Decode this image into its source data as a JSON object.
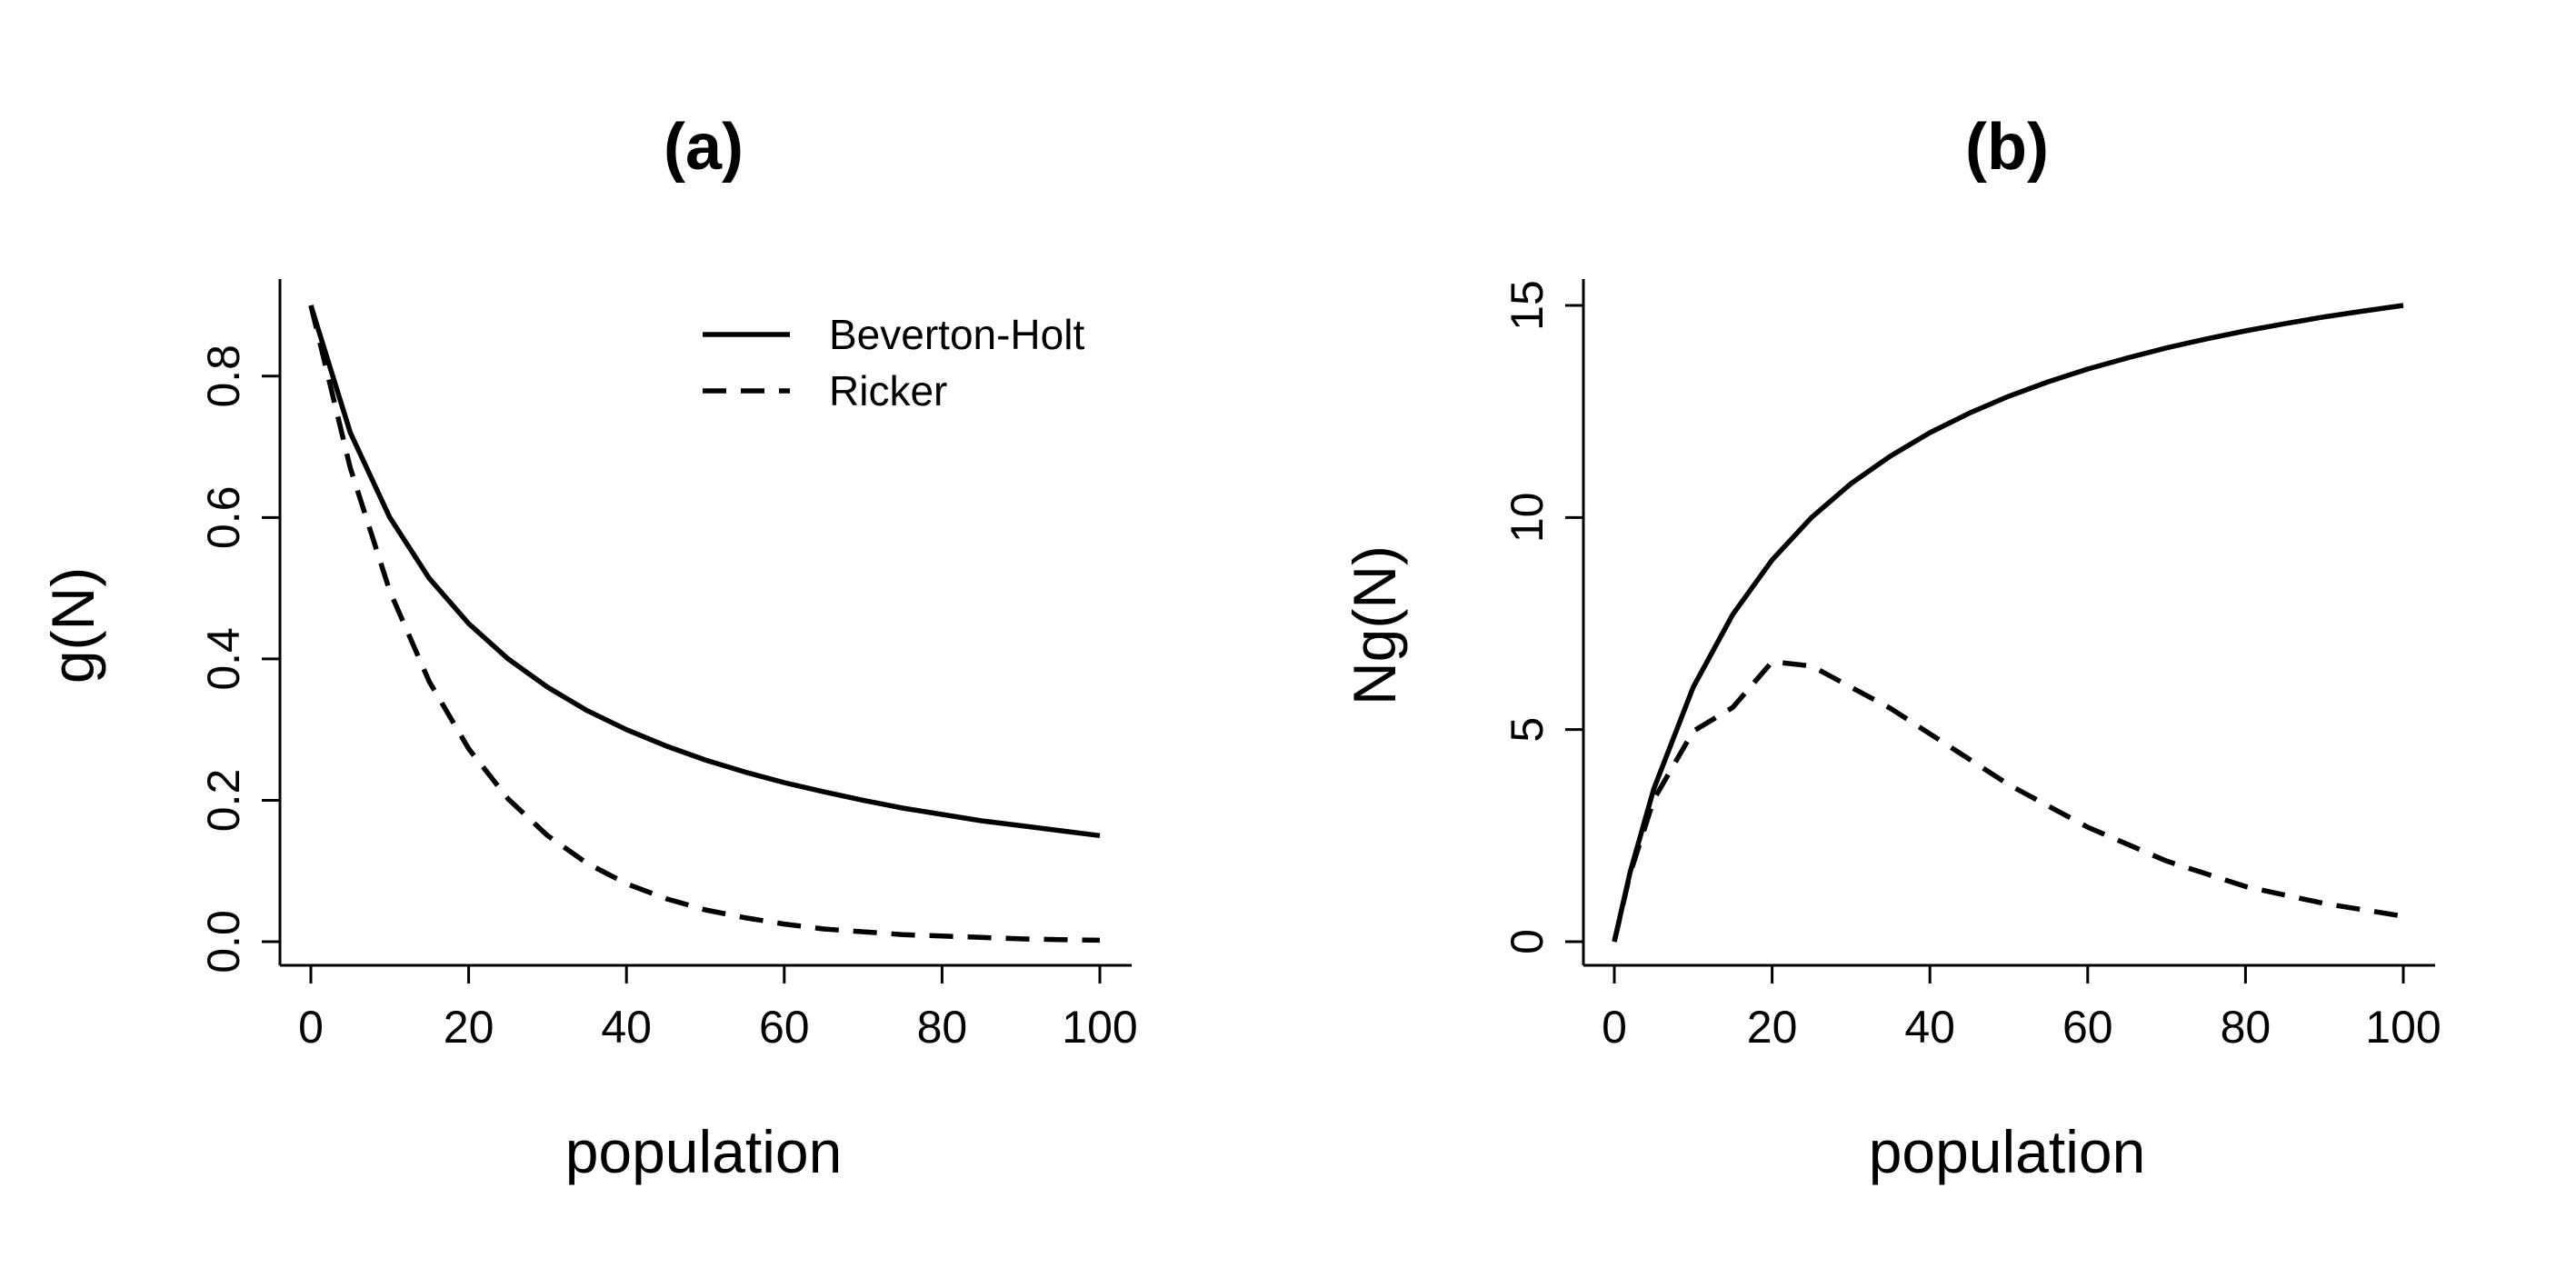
{
  "chart_data": [
    {
      "type": "line",
      "title": "(a)",
      "xlabel": "population",
      "ylabel": "g(N)",
      "xlim": [
        0,
        100
      ],
      "ylim": [
        0,
        0.9
      ],
      "xticks": [
        0,
        20,
        40,
        60,
        80,
        100
      ],
      "xtick_labels": [
        "0",
        "20",
        "40",
        "60",
        "80",
        "100"
      ],
      "yticks": [
        0,
        0.2,
        0.4,
        0.6,
        0.8
      ],
      "ytick_labels": [
        "0.0",
        "0.2",
        "0.4",
        "0.6",
        "0.8"
      ],
      "legend_position": "top-right",
      "grid": false,
      "x": [
        0,
        5,
        10,
        15,
        20,
        25,
        30,
        35,
        40,
        45,
        50,
        55,
        60,
        65,
        70,
        75,
        80,
        85,
        90,
        95,
        100
      ],
      "series": [
        {
          "name": "Beverton-Holt",
          "style": "solid",
          "values": [
            0.9,
            0.72,
            0.6,
            0.514,
            0.45,
            0.4,
            0.36,
            0.327,
            0.3,
            0.277,
            0.257,
            0.24,
            0.225,
            0.212,
            0.2,
            0.189,
            0.18,
            0.171,
            0.164,
            0.157,
            0.15
          ]
        },
        {
          "name": "Ricker",
          "style": "dashed",
          "values": [
            0.9,
            0.67,
            0.496,
            0.368,
            0.273,
            0.202,
            0.15,
            0.111,
            0.082,
            0.061,
            0.045,
            0.034,
            0.025,
            0.018,
            0.014,
            0.01,
            0.008,
            0.006,
            0.004,
            0.003,
            0.002
          ]
        }
      ]
    },
    {
      "type": "line",
      "title": "(b)",
      "xlabel": "population",
      "ylabel": "Ng(N)",
      "xlim": [
        0,
        100
      ],
      "ylim": [
        0,
        15
      ],
      "xticks": [
        0,
        20,
        40,
        60,
        80,
        100
      ],
      "xtick_labels": [
        "0",
        "20",
        "40",
        "60",
        "80",
        "100"
      ],
      "yticks": [
        0,
        5,
        10,
        15
      ],
      "ytick_labels": [
        "0",
        "5",
        "10",
        "15"
      ],
      "grid": false,
      "x": [
        0,
        2,
        5,
        10,
        15,
        20,
        25,
        30,
        35,
        40,
        45,
        50,
        55,
        60,
        65,
        70,
        75,
        80,
        85,
        90,
        95,
        100
      ],
      "series": [
        {
          "style": "solid",
          "values": [
            0,
            1.64,
            3.6,
            6.0,
            7.71,
            9.0,
            10.0,
            10.8,
            11.45,
            12.0,
            12.46,
            12.86,
            13.2,
            13.5,
            13.76,
            14.0,
            14.21,
            14.4,
            14.57,
            14.73,
            14.87,
            15.0
          ]
        },
        {
          "style": "dashed",
          "values": [
            0,
            1.6,
            3.35,
            4.96,
            5.52,
            6.6,
            6.5,
            6.0,
            5.5,
            4.9,
            4.3,
            3.7,
            3.2,
            2.7,
            2.3,
            1.9,
            1.6,
            1.3,
            1.1,
            0.9,
            0.75,
            0.6
          ]
        }
      ]
    }
  ],
  "colors": {
    "ink": "#000000",
    "background": "#ffffff"
  }
}
